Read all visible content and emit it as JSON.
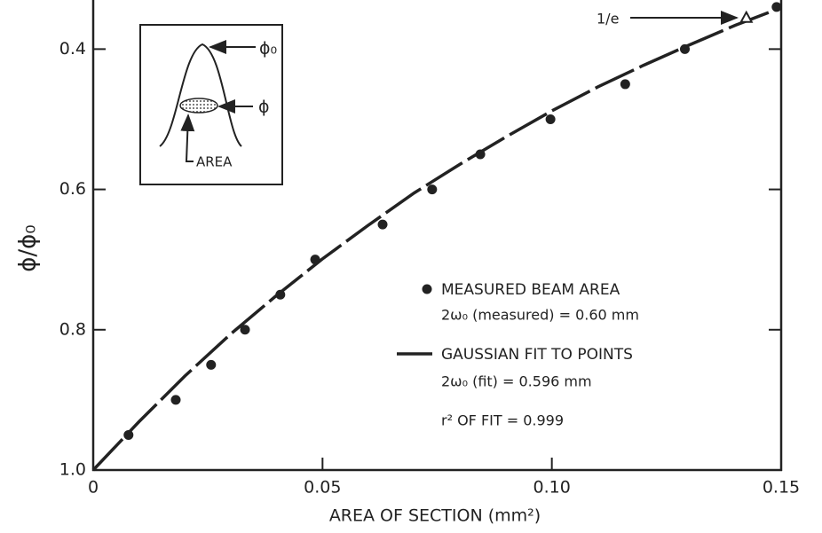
{
  "chart_data": {
    "type": "scatter",
    "x_label": "AREA OF SECTION (mm²)",
    "y_label": "ϕ/ϕ₀",
    "xlim": [
      0,
      0.15
    ],
    "ylim": [
      1.0,
      0.33
    ],
    "xticks": [
      0,
      0.05,
      {
        "value": 0.1,
        "label": "0.10"
      },
      0.15
    ],
    "yticks": [
      0.4,
      0.6,
      0.8,
      {
        "value": 1.0,
        "label": "1.0"
      }
    ],
    "series": [
      {
        "name": "MEASURED BEAM AREA",
        "type": "scatter",
        "color": "#222222",
        "x": [
          0.0077,
          0.018,
          0.0257,
          0.0331,
          0.0408,
          0.0484,
          0.0631,
          0.0739,
          0.0844,
          0.0997,
          0.116,
          0.129,
          0.149
        ],
        "values": [
          0.95,
          0.9,
          0.85,
          0.8,
          0.75,
          0.7,
          0.65,
          0.6,
          0.55,
          0.5,
          0.45,
          0.4,
          0.34
        ]
      },
      {
        "name": "GAUSSIAN FIT TO POINTS",
        "type": "line",
        "color": "#222222",
        "x": [
          0,
          0.01,
          0.02,
          0.03,
          0.04,
          0.05,
          0.06,
          0.07,
          0.08,
          0.09,
          0.1,
          0.11,
          0.12,
          0.13,
          0.14,
          0.15
        ],
        "values": [
          1.0,
          0.931,
          0.866,
          0.806,
          0.751,
          0.699,
          0.651,
          0.605,
          0.564,
          0.525,
          0.488,
          0.454,
          0.423,
          0.394,
          0.366,
          0.341
        ]
      }
    ],
    "annotations": [
      "2ω₀ (measured) = 0.60 mm",
      "2ω₀ (fit) = 0.596 mm",
      "r² OF FIT = 0.999"
    ],
    "marker": {
      "label": "1/e",
      "x": 0.1424,
      "value": 0.355
    },
    "inset_labels": [
      "ϕ₀",
      "ϕ",
      "AREA"
    ]
  }
}
